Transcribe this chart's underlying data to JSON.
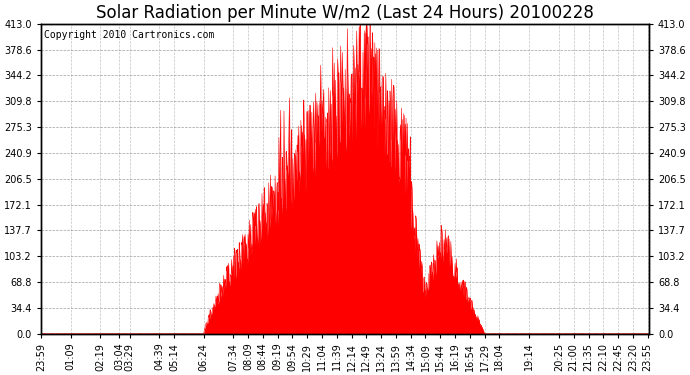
{
  "title": "Solar Radiation per Minute W/m2 (Last 24 Hours) 20100228",
  "copyright": "Copyright 2010 Cartronics.com",
  "y_max": 413.0,
  "y_min": 0.0,
  "y_ticks": [
    0.0,
    34.4,
    68.8,
    103.2,
    137.7,
    172.1,
    206.5,
    240.9,
    275.3,
    309.8,
    344.2,
    378.6,
    413.0
  ],
  "fill_color": "#ff0000",
  "line_color": "#ff0000",
  "bg_color": "#ffffff",
  "grid_color": "#888888",
  "border_color": "#000000",
  "dashed_line_color": "#ff0000",
  "x_labels": [
    "23:59",
    "01:09",
    "02:19",
    "03:04",
    "03:29",
    "04:39",
    "05:14",
    "06:24",
    "07:34",
    "08:09",
    "08:44",
    "09:19",
    "09:54",
    "10:29",
    "11:04",
    "11:39",
    "12:14",
    "12:49",
    "13:24",
    "13:59",
    "14:34",
    "15:09",
    "15:44",
    "16:19",
    "16:54",
    "17:29",
    "18:04",
    "19:14",
    "20:25",
    "21:00",
    "21:35",
    "22:10",
    "22:45",
    "23:20",
    "23:55"
  ],
  "n_points": 1440,
  "title_fontsize": 12,
  "copyright_fontsize": 7,
  "tick_fontsize": 7
}
